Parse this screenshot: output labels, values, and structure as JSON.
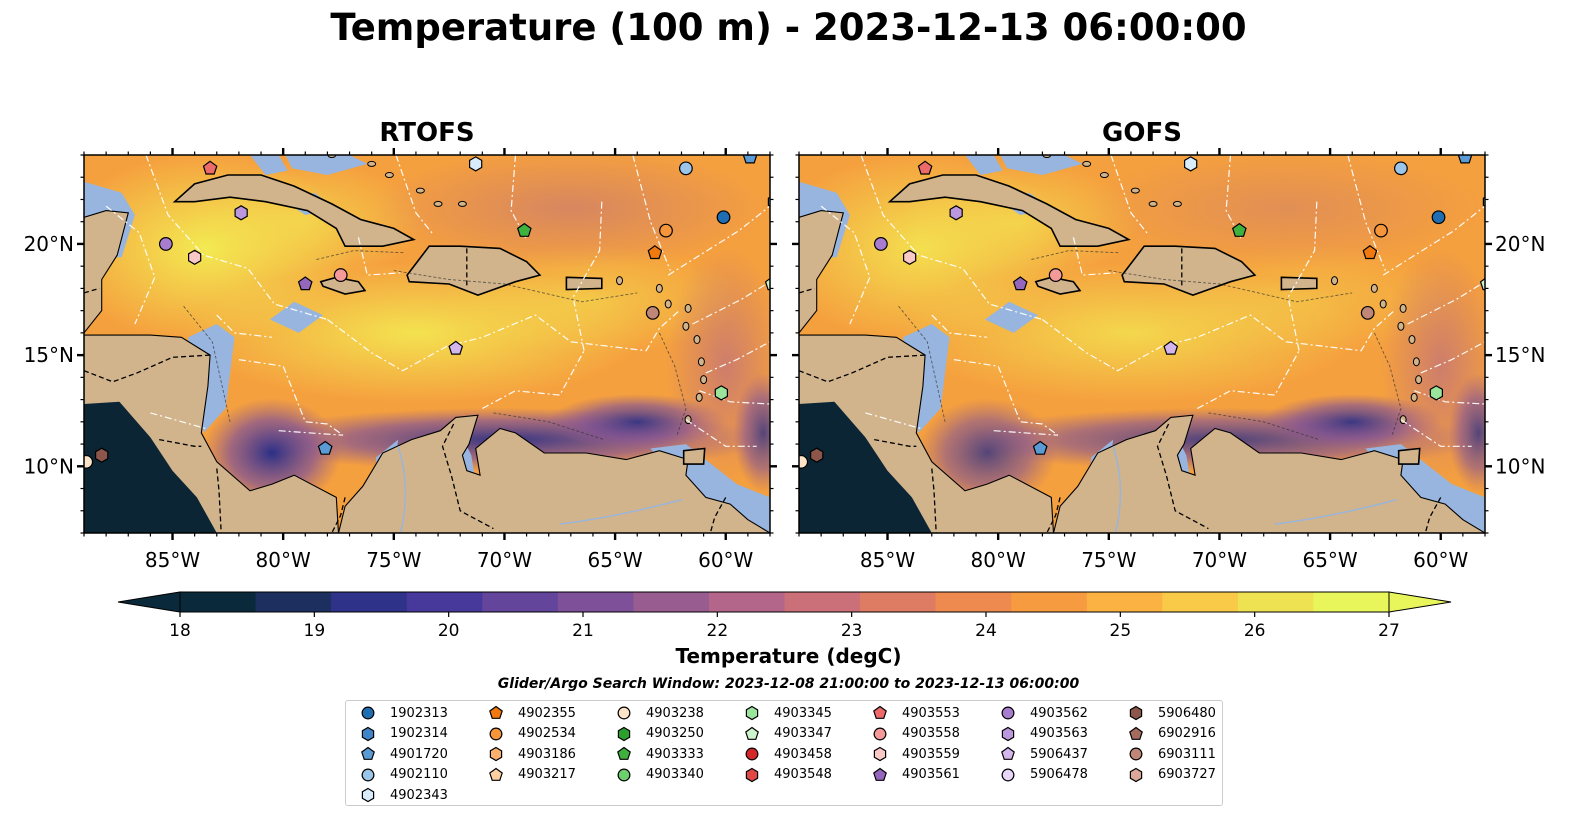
{
  "title": "Temperature (100 m) - 2023-12-13 06:00:00",
  "panels": [
    {
      "title": "RTOFS"
    },
    {
      "title": "GOFS"
    }
  ],
  "lon_ticks": [
    {
      "lon": -85,
      "label": "85°W"
    },
    {
      "lon": -80,
      "label": "80°W"
    },
    {
      "lon": -75,
      "label": "75°W"
    },
    {
      "lon": -70,
      "label": "70°W"
    },
    {
      "lon": -65,
      "label": "65°W"
    },
    {
      "lon": -60,
      "label": "60°W"
    }
  ],
  "lat_ticks": [
    {
      "lat": 20,
      "label": "20°N"
    },
    {
      "lat": 15,
      "label": "15°N"
    },
    {
      "lat": 10,
      "label": "10°N"
    }
  ],
  "extent": {
    "lon_min": -89,
    "lon_max": -58,
    "lat_min": 7,
    "lat_max": 24
  },
  "colorbar": {
    "label": "Temperature (degC)",
    "min": 18,
    "max": 27,
    "extend": "both",
    "ticks": [
      {
        "value": 18,
        "label": "18"
      },
      {
        "value": 19,
        "label": "19"
      },
      {
        "value": 20,
        "label": "20"
      },
      {
        "value": 21,
        "label": "21"
      },
      {
        "value": 22,
        "label": "22"
      },
      {
        "value": 23,
        "label": "23"
      },
      {
        "value": 24,
        "label": "24"
      },
      {
        "value": 25,
        "label": "25"
      },
      {
        "value": 26,
        "label": "26"
      },
      {
        "value": 27,
        "label": "27"
      }
    ],
    "colormap": "thermal (dark navy to yellow)",
    "colors": [
      "#0a2a3c",
      "#1c2f5e",
      "#2e3288",
      "#47389c",
      "#64459c",
      "#7d5099",
      "#985c91",
      "#b3668a",
      "#cb7078",
      "#de7c63",
      "#ee8a4f",
      "#f79b40",
      "#fbb243",
      "#f9ca47",
      "#eee252",
      "#e8f65c"
    ]
  },
  "search_window": "Glider/Argo Search Window: 2023-12-08 21:00:00 to 2023-12-13 06:00:00",
  "map_colors": {
    "land": "#d1b48c",
    "shallow": "#97b5de",
    "ocean_base": "#f5a03e",
    "outside": "#0b2535"
  },
  "legend": [
    {
      "id": "1902313",
      "shape": "circle",
      "color": "#1f6eb4"
    },
    {
      "id": "1902314",
      "shape": "hexagon",
      "color": "#3d85c6"
    },
    {
      "id": "4901720",
      "shape": "pentagon",
      "color": "#5b9bd5"
    },
    {
      "id": "4902110",
      "shape": "circle",
      "color": "#9cc5ea"
    },
    {
      "id": "4902343",
      "shape": "hexagon",
      "color": "#d9ecfa"
    },
    {
      "id": "4902355",
      "shape": "pentagon",
      "color": "#f07a10"
    },
    {
      "id": "4902534",
      "shape": "circle",
      "color": "#f7953a"
    },
    {
      "id": "4903186",
      "shape": "hexagon",
      "color": "#fbb06e"
    },
    {
      "id": "4903217",
      "shape": "pentagon",
      "color": "#fdd0a3"
    },
    {
      "id": "4903238",
      "shape": "circle",
      "color": "#fde3c8"
    },
    {
      "id": "4903250",
      "shape": "hexagon",
      "color": "#2ca02c"
    },
    {
      "id": "4903333",
      "shape": "pentagon",
      "color": "#3fb13f"
    },
    {
      "id": "4903340",
      "shape": "circle",
      "color": "#6cd06c"
    },
    {
      "id": "4903345",
      "shape": "hexagon",
      "color": "#9be49b"
    },
    {
      "id": "4903347",
      "shape": "pentagon",
      "color": "#cdf5cd"
    },
    {
      "id": "4903458",
      "shape": "circle",
      "color": "#d62728"
    },
    {
      "id": "4903548",
      "shape": "hexagon",
      "color": "#e04848"
    },
    {
      "id": "4903553",
      "shape": "pentagon",
      "color": "#ec6a6a"
    },
    {
      "id": "4903558",
      "shape": "circle",
      "color": "#f49a9a"
    },
    {
      "id": "4903559",
      "shape": "hexagon",
      "color": "#fbc8c8"
    },
    {
      "id": "4903561",
      "shape": "pentagon",
      "color": "#9467bd"
    },
    {
      "id": "4903562",
      "shape": "circle",
      "color": "#a87dd0"
    },
    {
      "id": "4903563",
      "shape": "hexagon",
      "color": "#bb97dd"
    },
    {
      "id": "5906437",
      "shape": "pentagon",
      "color": "#d2b6ec"
    },
    {
      "id": "5906478",
      "shape": "circle",
      "color": "#e8d7f8"
    },
    {
      "id": "5906480",
      "shape": "hexagon",
      "color": "#8c564b"
    },
    {
      "id": "6902916",
      "shape": "pentagon",
      "color": "#a56b5f"
    },
    {
      "id": "6903111",
      "shape": "circle",
      "color": "#c08778"
    },
    {
      "id": "6903727",
      "shape": "hexagon",
      "color": "#d9a89a"
    }
  ],
  "markers": [
    {
      "id": "1902313",
      "lon": -60.1,
      "lat": 21.2
    },
    {
      "id": "4901720",
      "lon": -58.9,
      "lat": 23.9
    },
    {
      "id": "4902110",
      "lon": -61.8,
      "lat": 23.4
    },
    {
      "id": "4902343",
      "lon": -71.3,
      "lat": 23.6
    },
    {
      "id": "4902355",
      "lon": -63.2,
      "lat": 19.6
    },
    {
      "id": "4902534",
      "lon": -62.7,
      "lat": 20.6
    },
    {
      "id": "4903345",
      "lon": -57.8,
      "lat": 21.9
    },
    {
      "id": "4903347",
      "lon": -57.9,
      "lat": 18.2
    },
    {
      "id": "4903333",
      "lon": -69.1,
      "lat": 20.6
    },
    {
      "id": "4903345",
      "lon": -60.2,
      "lat": 13.3
    },
    {
      "id": "4903553",
      "lon": -83.3,
      "lat": 23.4
    },
    {
      "id": "4903558",
      "lon": -77.4,
      "lat": 18.6
    },
    {
      "id": "4903559",
      "lon": -84.0,
      "lat": 19.4
    },
    {
      "id": "4903561",
      "lon": -79.0,
      "lat": 18.2
    },
    {
      "id": "4903562",
      "lon": -85.3,
      "lat": 20.0
    },
    {
      "id": "4903563",
      "lon": -81.9,
      "lat": 21.4
    },
    {
      "id": "5906437",
      "lon": -72.2,
      "lat": 15.3
    },
    {
      "id": "4903238",
      "lon": -88.9,
      "lat": 10.2
    },
    {
      "id": "4901720",
      "lon": -78.1,
      "lat": 10.8
    },
    {
      "id": "5906480",
      "lon": -88.2,
      "lat": 10.5
    },
    {
      "id": "6903111",
      "lon": -63.3,
      "lat": 16.9
    }
  ]
}
